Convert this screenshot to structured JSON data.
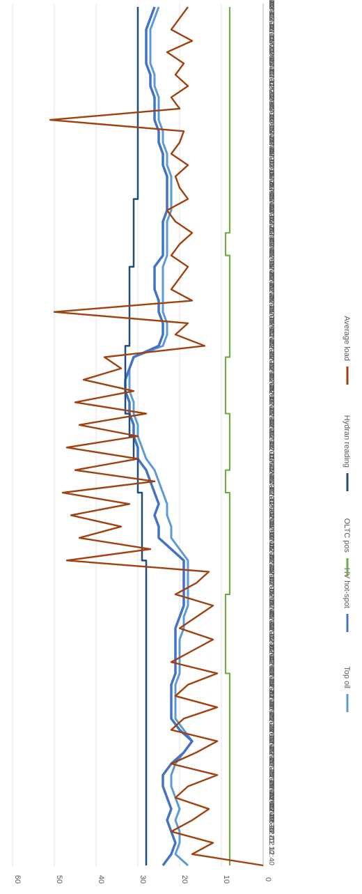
{
  "chart_data": {
    "type": "line",
    "orientation": "rotated-90-clockwise",
    "y_ticks": [
      "0",
      "10",
      "20",
      "30",
      "40",
      "50",
      "60"
    ],
    "ylim": [
      0,
      60
    ],
    "grid": true,
    "legend_position": "bottom",
    "categories": [
      "2016-12-12 12:40",
      "2017-01-22 01:10",
      "2017-01-22 18:20",
      "2017-01-23 12:30",
      "2017-01-24 06:40",
      "2017-01-25 00:50",
      "2017-01-25 19:00",
      "2017-01-26 13:10",
      "2017-01-27 07:20",
      "2017-01-28 01:30",
      "2017-01-28 19:40",
      "2017-01-29 13:50",
      "2017-01-30 08:00",
      "2017-01-31 02:10",
      "2017-01-31 20:20",
      "2017-02-01 14:30",
      "2017-02-02 08:40",
      "2017-02-03 02:50",
      "2017-02-03 21:00",
      "2017-02-04 15:10",
      "2017-02-05 09:20",
      "2017-02-06 03:30",
      "2017-02-06 21:40",
      "2017-02-07 15:50",
      "2017-02-08 10:00",
      "2017-02-09 04:10",
      "2017-02-09 22:20",
      "2017-02-10 16:30",
      "2017-02-11 10:40",
      "2017-02-12 04:50",
      "2017-02-12 23:00",
      "2017-02-13 17:10",
      "2017-02-14 11:20",
      "2017-02-15 05:30",
      "2017-02-15 23:40",
      "2017-02-16 17:50",
      "2017-02-17 12:00",
      "2017-02-18 06:10",
      "2017-02-19 00:20",
      "2017-02-19 18:30",
      "2017-02-20 12:40",
      "2017-02-21 06:50",
      "2017-02-22 01:00",
      "2017-02-22 19:10",
      "2017-02-23 13:20",
      "2017-02-24 07:30",
      "2017-02-25 01:40",
      "2017-02-25 19:50",
      "2017-02-26 14:00",
      "2017-02-27 08:10",
      "2017-02-28 02:20",
      "2017-02-28 20:30",
      "2017-03-01 14:40",
      "2017-03-02 08:50",
      "2017-03-03 03:00",
      "2017-03-03 21:10",
      "2017-03-04 15:20",
      "2017-03-05 09:30",
      "2017-03-06 03:40",
      "2017-03-06 21:50",
      "2017-03-07 16:00",
      "2017-03-08 10:10",
      "2017-03-09 04:20",
      "2017-03-09 22:30",
      "2017-03-10 16:40",
      "2017-03-11 10:50",
      "2017-03-12 05:00",
      "2017-03-12 23:10",
      "2017-03-13 17:20",
      "2017-03-14 11:30",
      "2017-03-15 05:40",
      "2017-03-15 23:50",
      "2017-03-16 18:00",
      "2017-03-17 12:10",
      "2017-03-18 06:20",
      "2017-03-19 00:30",
      "2017-03-19 18:40"
    ],
    "series": [
      {
        "name": "Top oil",
        "color": "#5B9BD5",
        "values": [
          18,
          21,
          20,
          20,
          21,
          20,
          21,
          22,
          22,
          21,
          19,
          17,
          19,
          21,
          21,
          21,
          21,
          20,
          20,
          20,
          20,
          19,
          19,
          18,
          18,
          18,
          18,
          18,
          20,
          22,
          22,
          23,
          23,
          24,
          25,
          26,
          28,
          29,
          30,
          30,
          31,
          31,
          32,
          32,
          32,
          31,
          24,
          23,
          23,
          24,
          24,
          24,
          24,
          24,
          23,
          23,
          23,
          23,
          22,
          22,
          22,
          22,
          23,
          23,
          24,
          24,
          25,
          25,
          25,
          26,
          26,
          27,
          27,
          27,
          27,
          26,
          25
        ]
      },
      {
        "name": "HV hot-spot",
        "color": "#4472C4",
        "values": [
          24,
          22,
          21,
          22,
          23,
          22,
          23,
          24,
          24,
          22,
          19,
          17,
          20,
          22,
          22,
          22,
          22,
          21,
          21,
          21,
          21,
          21,
          20,
          19,
          19,
          19,
          19,
          19,
          22,
          25,
          25,
          26,
          25,
          26,
          27,
          28,
          30,
          30,
          31,
          31,
          32,
          32,
          33,
          33,
          32,
          31,
          25,
          24,
          24,
          25,
          25,
          26,
          26,
          26,
          24,
          24,
          24,
          24,
          23,
          23,
          23,
          23,
          24,
          24,
          25,
          25,
          26,
          26,
          26,
          27,
          27,
          28,
          28,
          28,
          28,
          27,
          26
        ]
      },
      {
        "name": "OLTC pos",
        "color": "#70AD47",
        "values": [
          8,
          8,
          8,
          8,
          8,
          8,
          8,
          8,
          8,
          8,
          8,
          8,
          8,
          8,
          8,
          8,
          8,
          9,
          9,
          9,
          9,
          9,
          9,
          9,
          8,
          8,
          8,
          8,
          8,
          8,
          8,
          8,
          8,
          9,
          9,
          8,
          8,
          8,
          8,
          8,
          9,
          9,
          9,
          9,
          9,
          8,
          8,
          8,
          8,
          8,
          8,
          8,
          8,
          8,
          9,
          9,
          8,
          8,
          8,
          8,
          8,
          8,
          8,
          8,
          8,
          8,
          8,
          8,
          8,
          8,
          8,
          8,
          8,
          8,
          8,
          8,
          8
        ]
      },
      {
        "name": "Hydran reading",
        "color": "#1F4E79",
        "values": [
          28,
          28,
          28,
          28,
          28,
          28,
          28,
          28,
          28,
          28,
          28,
          28,
          28,
          28,
          28,
          28,
          28,
          28,
          28,
          28,
          28,
          28,
          28,
          28,
          28,
          28,
          28,
          29,
          29,
          29,
          29,
          29,
          29,
          30,
          30,
          30,
          31,
          31,
          32,
          32,
          33,
          33,
          33,
          33,
          33,
          33,
          32,
          32,
          32,
          32,
          32,
          32,
          32,
          31,
          31,
          31,
          31,
          31,
          31,
          30,
          30,
          30,
          30,
          30,
          30,
          30,
          30,
          30,
          30,
          30,
          30,
          30,
          30,
          30,
          30,
          30,
          30
        ]
      },
      {
        "name": "Average load",
        "color": "#A0410D",
        "values": [
          0,
          17,
          12,
          22,
          17,
          13,
          21,
          18,
          11,
          22,
          16,
          11,
          22,
          19,
          11,
          21,
          18,
          11,
          22,
          17,
          12,
          20,
          16,
          12,
          21,
          16,
          13,
          47,
          27,
          44,
          34,
          46,
          32,
          48,
          26,
          45,
          30,
          47,
          30,
          44,
          28,
          45,
          31,
          43,
          34,
          38,
          14,
          21,
          18,
          50,
          17,
          22,
          20,
          18,
          22,
          20,
          17,
          21,
          23,
          18,
          20,
          21,
          18,
          22,
          20,
          19,
          51,
          20,
          22,
          18,
          21,
          19,
          23,
          17,
          22,
          20,
          18
        ]
      }
    ],
    "legend": [
      "Top oil",
      "HV hot-spot",
      "OLTC pos",
      "Hydran reading",
      "Average load"
    ]
  }
}
